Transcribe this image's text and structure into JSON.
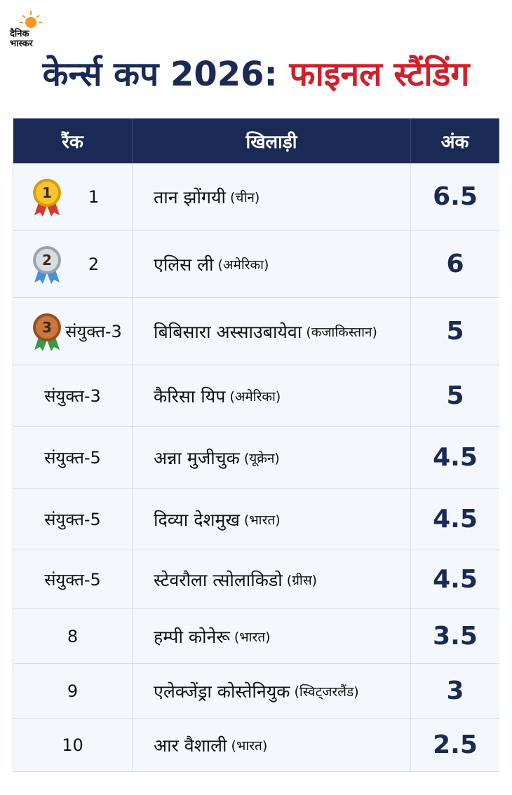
{
  "logo": {
    "text": "दैनिक भास्कर"
  },
  "header": {
    "title_main": "केर्न्स कप 2026:",
    "title_accent": "फाइनल स्टैंडिंग"
  },
  "table": {
    "columns": [
      "रैंक",
      "खिलाड़ी",
      "अंक"
    ],
    "rows": [
      {
        "medal": "1",
        "rank": "1",
        "player": "तान झोंगयी",
        "country": "(चीन)",
        "points": 6.5
      },
      {
        "medal": "2",
        "rank": "2",
        "player": "एलिस ली",
        "country": "(अमेरिका)",
        "points": 6
      },
      {
        "medal": "3",
        "rank": "संयुक्त-3",
        "player": "बिबिसारा अस्साउबायेवा",
        "country": "(कजाकिस्तान)",
        "points": 5
      },
      {
        "rank": "संयुक्त-3",
        "player": "कैरिसा यिप",
        "country": "(अमेरिका)",
        "points": 5
      },
      {
        "rank": "संयुक्त-5",
        "player": "अन्ना मुजीचुक",
        "country": "(यूक्रेन)",
        "points": 4.5
      },
      {
        "rank": "संयुक्त-5",
        "player": "दिव्या देशमुख",
        "country": "(भारत)",
        "points": 4.5
      },
      {
        "rank": "संयुक्त-5",
        "player": "स्टेवरौला त्सोलाकिडो",
        "country": "(ग्रीस)",
        "points": 4.5
      },
      {
        "rank": "8",
        "player": "हम्पी कोनेरू",
        "country": "(भारत)",
        "points": 3.5
      },
      {
        "rank": "9",
        "player": "एलेक्जेंड्रा कोस्तेनियुक",
        "country": "(स्विट्जरलैंड)",
        "points": 3
      },
      {
        "rank": "10",
        "player": "आर वैशाली",
        "country": "(भारत)",
        "points": 2.5
      }
    ]
  }
}
